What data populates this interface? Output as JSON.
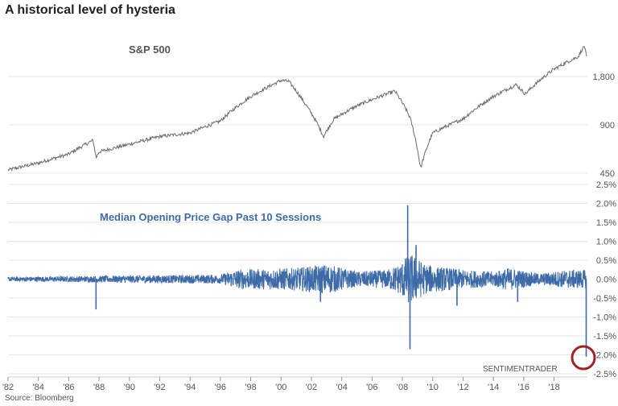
{
  "title": "A historical level of hysteria",
  "source": "Source: Bloomberg",
  "watermark": "SENTIMENTRADER",
  "colors": {
    "top_line": "#6b6b6b",
    "bottom_line": "#3d6ba8",
    "circle": "#9b2525",
    "grid": "#e6e6e6"
  },
  "chart_data": [
    {
      "type": "line",
      "title": "S&P 500",
      "scale": "log",
      "ylim": [
        400,
        3400
      ],
      "y_ticks": [
        450,
        900,
        1800
      ],
      "y_tick_labels": [
        "450",
        "900",
        "1,800"
      ],
      "x_range": [
        1982,
        2020.2
      ],
      "series": [
        {
          "name": "S&P 500",
          "x": [
            1982,
            1984,
            1986,
            1987.6,
            1987.8,
            1988,
            1990,
            1992,
            1994,
            1996,
            1998,
            2000,
            2000.5,
            2001.5,
            2002.8,
            2003.5,
            2005,
            2007.5,
            2008.5,
            2009.2,
            2010,
            2012,
            2014,
            2015.5,
            2016.1,
            2018,
            2019.6,
            2020.0,
            2020.15
          ],
          "values": [
            470,
            520,
            590,
            720,
            560,
            610,
            680,
            760,
            800,
            950,
            1350,
            1700,
            1680,
            1250,
            760,
            980,
            1180,
            1460,
            1000,
            480,
            800,
            980,
            1350,
            1600,
            1400,
            2000,
            2400,
            2800,
            2350
          ]
        }
      ]
    },
    {
      "type": "line",
      "title": "Median Opening Price Gap Past 10 Sessions",
      "ylim": [
        -2.5,
        2.5
      ],
      "y_ticks": [
        2.5,
        2.0,
        1.5,
        1.0,
        0.5,
        0.0,
        -0.5,
        -1.0,
        -1.5,
        -2.0,
        -2.5
      ],
      "y_tick_labels": [
        "2.5%",
        "2.0%",
        "1.5%",
        "1.0%",
        "0.5%",
        "0.0%",
        "-0.5%",
        "-1.0%",
        "-1.5%",
        "-2.0%",
        "-2.5%"
      ],
      "x_range": [
        1982,
        2020.2
      ],
      "x_ticks": [
        1982,
        1984,
        1986,
        1988,
        1990,
        1992,
        1994,
        1996,
        1998,
        2000,
        2002,
        2004,
        2006,
        2008,
        2010,
        2012,
        2014,
        2016,
        2018
      ],
      "x_tick_labels": [
        "'82",
        "'84",
        "'86",
        "'88",
        "'90",
        "'92",
        "'94",
        "'96",
        "'98",
        "'00",
        "'02",
        "'04",
        "'06",
        "'08",
        "'10",
        "'12",
        "'14",
        "'16",
        "'18"
      ],
      "envelope": {
        "x": [
          1982,
          1987,
          1990,
          1996,
          1997,
          2001,
          2003,
          2005,
          2007,
          2007.8,
          2008.5,
          2009.5,
          2010,
          2012,
          2014,
          2015,
          2017,
          2019,
          2020
        ],
        "amp": [
          0.06,
          0.08,
          0.1,
          0.12,
          0.25,
          0.3,
          0.4,
          0.2,
          0.25,
          0.4,
          0.7,
          0.4,
          0.35,
          0.25,
          0.2,
          0.3,
          0.15,
          0.25,
          0.25
        ]
      },
      "spikes": [
        {
          "x": 1987.8,
          "value": -0.8
        },
        {
          "x": 2002.6,
          "value": -0.6
        },
        {
          "x": 2008.35,
          "value": 1.95
        },
        {
          "x": 2008.5,
          "value": -1.85
        },
        {
          "x": 2008.9,
          "value": 0.9
        },
        {
          "x": 2011.6,
          "value": -0.7
        },
        {
          "x": 2015.6,
          "value": -0.6
        },
        {
          "x": 2020.12,
          "value": -2.05
        }
      ]
    }
  ]
}
